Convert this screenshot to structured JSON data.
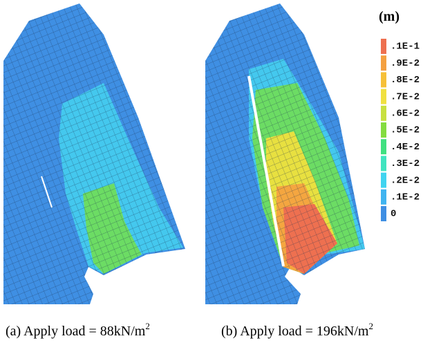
{
  "unit": "(m)",
  "legend": [
    {
      "label": ".1E-1",
      "color": "#ee7050"
    },
    {
      "label": ".9E-2",
      "color": "#f4a040"
    },
    {
      "label": ".8E-2",
      "color": "#f6c038"
    },
    {
      "label": ".7E-2",
      "color": "#f0e040"
    },
    {
      "label": ".6E-2",
      "color": "#c8e040"
    },
    {
      "label": ".5E-2",
      "color": "#84dc40"
    },
    {
      "label": ".4E-2",
      "color": "#40e080"
    },
    {
      "label": ".3E-2",
      "color": "#40e4c0"
    },
    {
      "label": ".2E-2",
      "color": "#40d4f0"
    },
    {
      "label": ".1E-2",
      "color": "#40b4f0"
    },
    {
      "label": "0",
      "color": "#3f8fe3"
    }
  ],
  "captions": [
    {
      "text": "(a) Apply load = 88kN/m",
      "superscript": "2"
    },
    {
      "text": "(b) Apply load = 196kN/m",
      "superscript": "2"
    }
  ]
}
